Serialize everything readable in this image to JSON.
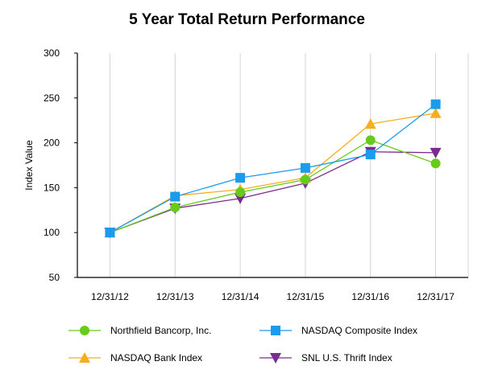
{
  "chart_data": {
    "type": "line",
    "title": "5 Year Total Return Performance",
    "xlabel": "",
    "ylabel": "Index Value",
    "ylim": [
      50,
      300
    ],
    "yticks": [
      50,
      100,
      150,
      200,
      250,
      300
    ],
    "grid": "vertical",
    "categories": [
      "12/31/12",
      "12/31/13",
      "12/31/14",
      "12/31/15",
      "12/31/16",
      "12/31/17"
    ],
    "series": [
      {
        "name": "Northfield Bancorp, Inc.",
        "color": "#66cc1a",
        "marker": "circle",
        "values": [
          100,
          128,
          145,
          159,
          203,
          177
        ]
      },
      {
        "name": "NASDAQ Composite Index",
        "color": "#1a9bec",
        "marker": "square",
        "values": [
          100,
          140,
          161,
          172,
          187,
          243
        ]
      },
      {
        "name": "NASDAQ Bank Index",
        "color": "#f5ae1e",
        "marker": "triangle-up",
        "values": [
          100,
          141,
          148,
          161,
          221,
          233
        ]
      },
      {
        "name": "SNL U.S. Thrift Index",
        "color": "#7b2a8f",
        "marker": "triangle-down",
        "values": [
          100,
          127,
          138,
          155,
          190,
          189
        ]
      }
    ],
    "legend": {
      "placement": "bottom",
      "order": [
        "Northfield Bancorp, Inc.",
        "NASDAQ Composite Index",
        "NASDAQ Bank Index",
        "SNL U.S. Thrift Index"
      ]
    }
  }
}
